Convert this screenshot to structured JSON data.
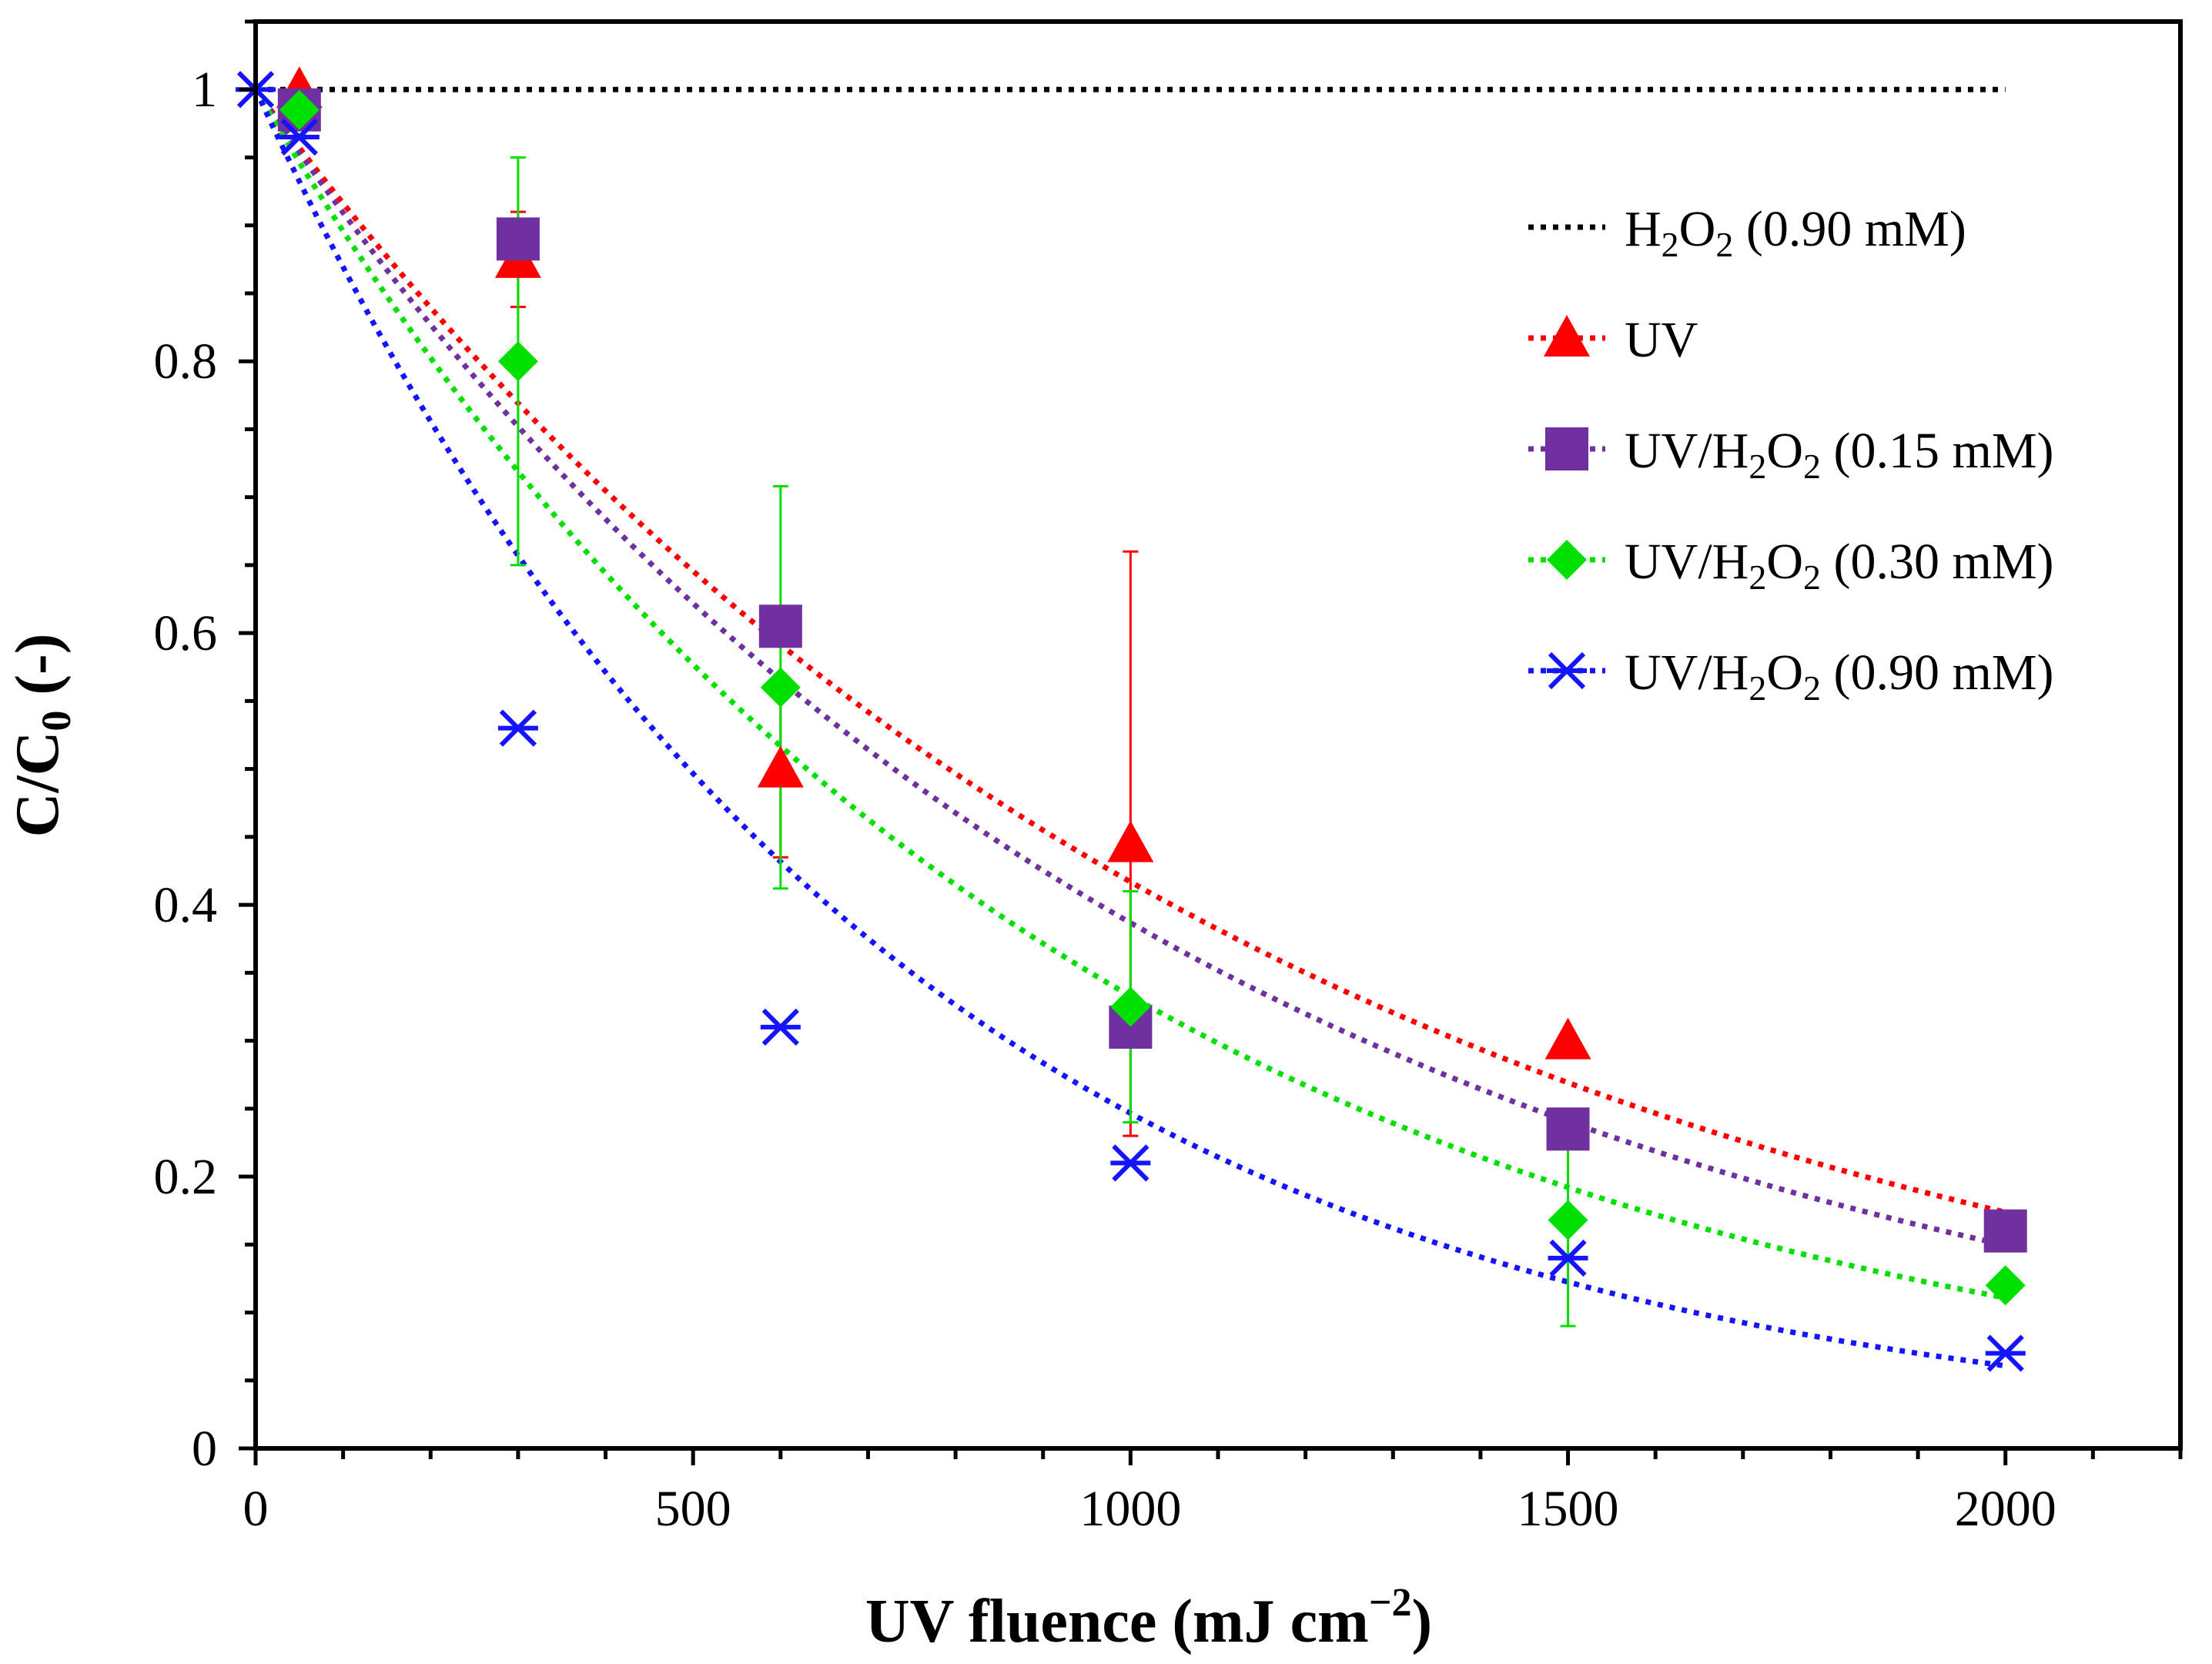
{
  "chart_data": {
    "type": "scatter",
    "xlabel": "UV fluence (mJ cm",
    "xlabel_sup": "−2",
    "xlabel_close": ")",
    "ylabel": "C/C",
    "ylabel_sub": "0",
    "ylabel_suffix": " (-)",
    "xlim": [
      0,
      2200
    ],
    "ylim": [
      0,
      1.05
    ],
    "x_ticks": [
      0,
      500,
      1000,
      1500,
      2000
    ],
    "x_tick_labels": [
      "0",
      "500",
      "1000",
      "1500",
      "2000"
    ],
    "y_ticks": [
      0,
      0.2,
      0.4,
      0.6,
      0.8,
      1.0
    ],
    "y_tick_labels": [
      "0",
      "0.2",
      "0.4",
      "0.6",
      "0.8",
      "1"
    ],
    "legend_position": "top-right",
    "series": [
      {
        "name": "H2O2 (0.90 mM)",
        "legend": {
          "pre": "H",
          "sub1": "2",
          "mid": "O",
          "sub2": "2",
          "post": " (0.90 mM)"
        },
        "color": "#000000",
        "marker": "none",
        "x": [],
        "y": [],
        "errors": [],
        "trend": {
          "type": "constant",
          "value": 1.0,
          "from": 0,
          "to": 2000
        }
      },
      {
        "name": "UV",
        "legend": {
          "pre": "UV",
          "sub1": "",
          "mid": "",
          "sub2": "",
          "post": ""
        },
        "color": "#ff0000",
        "marker": "triangle",
        "x": [
          50,
          300,
          600,
          1000,
          1500
        ],
        "y": [
          1.0,
          0.875,
          0.5,
          0.445,
          0.3
        ],
        "errors": [
          0,
          0.035,
          0.065,
          0.215,
          0
        ],
        "trend": {
          "type": "exp",
          "k": 0.000875,
          "from": 0,
          "to": 2000
        }
      },
      {
        "name": "UV/H2O2 (0.15 mM)",
        "legend": {
          "pre": "UV/H",
          "sub1": "2",
          "mid": "O",
          "sub2": "2",
          "post": " (0.15 mM)"
        },
        "color": "#7030a0",
        "marker": "square",
        "x": [
          50,
          300,
          600,
          1000,
          1500,
          2000
        ],
        "y": [
          0.985,
          0.89,
          0.605,
          0.31,
          0.235,
          0.16
        ],
        "errors": [
          0,
          0,
          0,
          0,
          0,
          0
        ],
        "trend": {
          "type": "exp",
          "k": 0.00095,
          "from": 0,
          "to": 2000
        }
      },
      {
        "name": "UV/H2O2 (0.30 mM)",
        "legend": {
          "pre": "UV/H",
          "sub1": "2",
          "mid": "O",
          "sub2": "2",
          "post": " (0.30 mM)"
        },
        "color": "#00e000",
        "marker": "diamond",
        "x": [
          50,
          300,
          600,
          1000,
          1500,
          2000
        ],
        "y": [
          0.985,
          0.8,
          0.56,
          0.325,
          0.168,
          0.12
        ],
        "errors": [
          0,
          0.15,
          0.148,
          0.085,
          0.078,
          0
        ],
        "trend": {
          "type": "exp",
          "k": 0.0011,
          "from": 0,
          "to": 2000
        }
      },
      {
        "name": "UV/H2O2 (0.90 mM)",
        "legend": {
          "pre": "UV/H",
          "sub1": "2",
          "mid": "O",
          "sub2": "2",
          "post": " (0.90 mM)"
        },
        "color": "#1414ff",
        "marker": "asterisk",
        "x": [
          0,
          50,
          300,
          600,
          1000,
          1500,
          2000
        ],
        "y": [
          1.0,
          0.965,
          0.53,
          0.31,
          0.21,
          0.14,
          0.07
        ],
        "errors": [
          0,
          0,
          0,
          0,
          0,
          0,
          0
        ],
        "trend": {
          "type": "exp",
          "k": 0.0014,
          "from": 0,
          "to": 2000
        }
      }
    ]
  }
}
